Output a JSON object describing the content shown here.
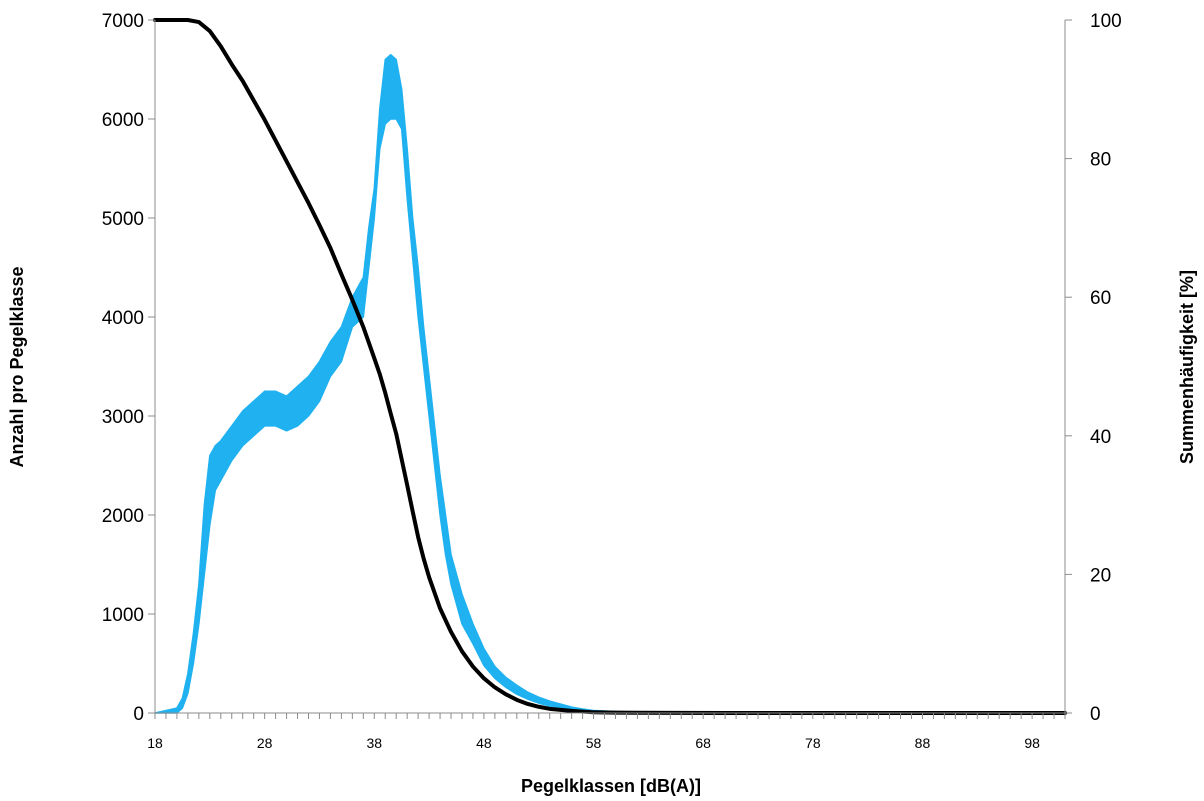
{
  "chart_data": {
    "type": "line",
    "xlabel": "Pegelklassen [dB(A)]",
    "ylabel": "Anzahl pro Pegelklasse",
    "y2label": "Summenhäufigkeit [%]",
    "xlim": [
      18,
      101
    ],
    "ylim": [
      0,
      7000
    ],
    "y2lim": [
      0,
      100
    ],
    "x_ticks": [
      "18",
      "28",
      "38",
      "48",
      "58",
      "68",
      "78",
      "88",
      "98"
    ],
    "y_ticks": [
      "0",
      "1000",
      "2000",
      "3000",
      "4000",
      "5000",
      "6000",
      "7000"
    ],
    "y2_ticks": [
      "0",
      "20",
      "40",
      "60",
      "80",
      "100"
    ],
    "grid": false,
    "series": [
      {
        "axis": "left",
        "color": "#1fb1f0",
        "band": true,
        "x": [
          18,
          20,
          20.5,
          21,
          21.5,
          22,
          22.5,
          23,
          23.5,
          24,
          25,
          26,
          27,
          28,
          29,
          30,
          31,
          32,
          33,
          34,
          35,
          36,
          37,
          37.5,
          38,
          38.5,
          39,
          39.5,
          40,
          40.5,
          41,
          41.5,
          42,
          42.5,
          43,
          43.5,
          44,
          44.5,
          45,
          46,
          47,
          48,
          49,
          50,
          51,
          52,
          53,
          54,
          55,
          56,
          57,
          58,
          60,
          62,
          64,
          66,
          68,
          70,
          101
        ],
        "low": [
          0,
          0,
          50,
          200,
          500,
          900,
          1400,
          1900,
          2250,
          2350,
          2550,
          2700,
          2800,
          2900,
          2900,
          2850,
          2900,
          3000,
          3150,
          3400,
          3550,
          3900,
          4000,
          4500,
          5000,
          5700,
          5950,
          6000,
          6000,
          5900,
          5200,
          4600,
          4000,
          3500,
          3000,
          2500,
          2000,
          1600,
          1300,
          900,
          700,
          480,
          350,
          260,
          190,
          140,
          100,
          70,
          50,
          30,
          15,
          10,
          5,
          3,
          2,
          1,
          0,
          0,
          0
        ],
        "high": [
          0,
          50,
          150,
          400,
          800,
          1300,
          2100,
          2600,
          2700,
          2750,
          2900,
          3050,
          3150,
          3250,
          3250,
          3200,
          3300,
          3400,
          3550,
          3750,
          3900,
          4200,
          4400,
          4900,
          5300,
          6100,
          6600,
          6650,
          6600,
          6300,
          5700,
          5000,
          4500,
          3900,
          3400,
          2900,
          2400,
          2000,
          1600,
          1200,
          900,
          650,
          470,
          360,
          280,
          210,
          160,
          120,
          90,
          60,
          40,
          25,
          15,
          10,
          6,
          3,
          2,
          1,
          0
        ]
      },
      {
        "axis": "right",
        "color": "#000000",
        "x": [
          18,
          19,
          20,
          21,
          22,
          23,
          24,
          25,
          26,
          27,
          28,
          29,
          30,
          31,
          32,
          33,
          34,
          35,
          36,
          37,
          38,
          38.5,
          39,
          39.5,
          40,
          40.5,
          41,
          41.5,
          42,
          42.5,
          43,
          44,
          45,
          46,
          47,
          48,
          49,
          50,
          51,
          52,
          53,
          54,
          56,
          58,
          60,
          70,
          101
        ],
        "y": [
          100,
          100,
          100,
          100,
          99.7,
          98.4,
          96.2,
          93.6,
          91.2,
          88.4,
          85.6,
          82.6,
          79.6,
          76.6,
          73.6,
          70.4,
          67.1,
          63.3,
          59.6,
          55.7,
          51.2,
          48.9,
          46.2,
          43.2,
          40.3,
          36.6,
          32.9,
          29.1,
          25.4,
          22.3,
          19.6,
          15.1,
          11.7,
          8.9,
          6.7,
          5.0,
          3.7,
          2.7,
          1.9,
          1.3,
          0.9,
          0.6,
          0.3,
          0.1,
          0.05,
          0,
          0
        ]
      }
    ]
  }
}
